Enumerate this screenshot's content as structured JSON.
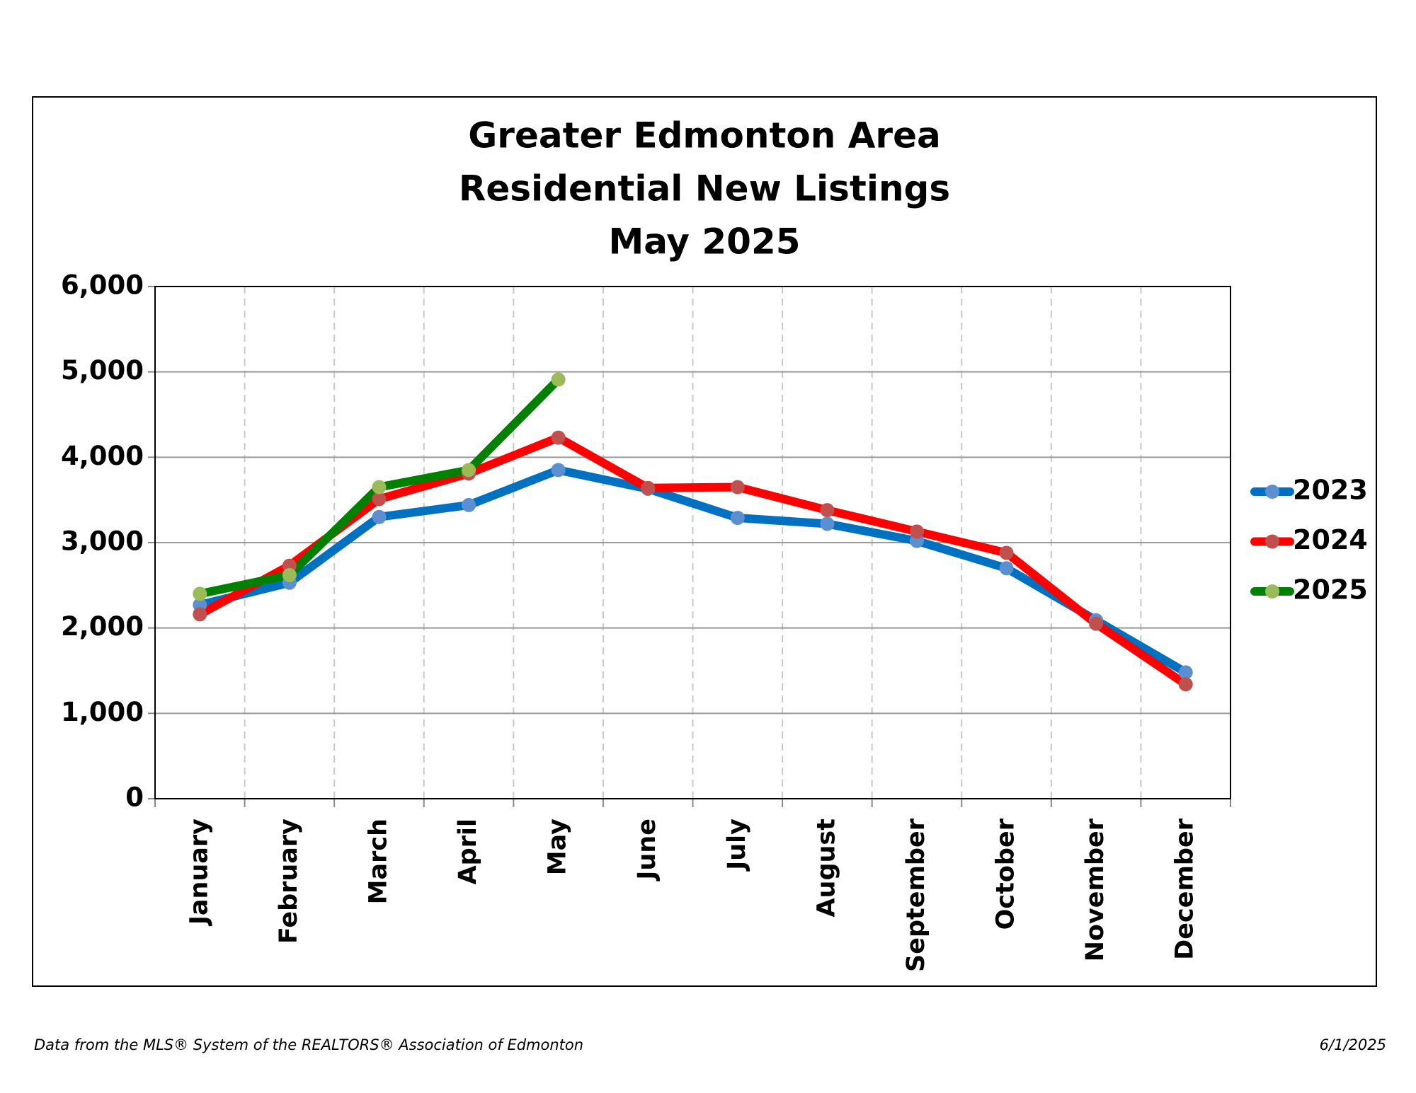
{
  "chart_data": {
    "type": "line",
    "title": [
      "Greater Edmonton Area",
      "Residential New Listings",
      "May 2025"
    ],
    "categories": [
      "January",
      "February",
      "March",
      "April",
      "May",
      "June",
      "July",
      "August",
      "September",
      "October",
      "November",
      "December"
    ],
    "series": [
      {
        "name": "2023",
        "color": "#0070c0",
        "marker_color": "#5b8fd0",
        "values": [
          2270,
          2530,
          3300,
          3440,
          3850,
          3630,
          3290,
          3220,
          3020,
          2700,
          2090,
          1480
        ]
      },
      {
        "name": "2024",
        "color": "#ff0000",
        "marker_color": "#c0504d",
        "values": [
          2160,
          2730,
          3510,
          3810,
          4230,
          3640,
          3650,
          3380,
          3130,
          2880,
          2050,
          1340
        ]
      },
      {
        "name": "2025",
        "color": "#008000",
        "marker_color": "#9bbb59",
        "values": [
          2400,
          2620,
          3650,
          3850,
          4910,
          null,
          null,
          null,
          null,
          null,
          null,
          null
        ]
      }
    ],
    "ylim": [
      0,
      6000
    ],
    "yticks": [
      {
        "value": 0,
        "label": "0"
      },
      {
        "value": 1000,
        "label": "1,000"
      },
      {
        "value": 2000,
        "label": "2,000"
      },
      {
        "value": 3000,
        "label": "3,000"
      },
      {
        "value": 4000,
        "label": "4,000"
      },
      {
        "value": 5000,
        "label": "5,000"
      },
      {
        "value": 6000,
        "label": "6,000"
      }
    ],
    "grid": true,
    "legend": "right",
    "source": "Data from the MLS® System of the REALTORS® Association of Edmonton",
    "date": "6/1/2025"
  }
}
